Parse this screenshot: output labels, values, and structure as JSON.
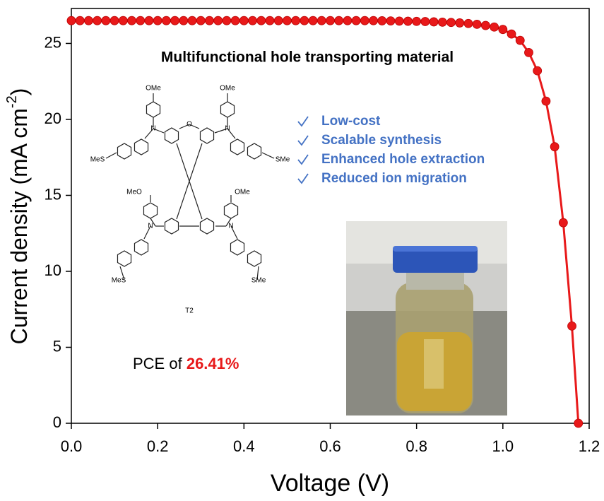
{
  "chart_data": {
    "type": "line",
    "xlabel": "Voltage (V)",
    "ylabel": {
      "text": "Current density (mA cm",
      "superscript": "-2",
      "close": ")"
    },
    "xlim": [
      0,
      1.2
    ],
    "ylim": [
      0,
      27.3
    ],
    "xticks": [
      {
        "value": 0,
        "label": "0.0"
      },
      0.2,
      0.4,
      0.6,
      0.8,
      {
        "value": 1,
        "label": "1.0"
      },
      1.2
    ],
    "yticks": [
      0,
      5,
      10,
      15,
      20,
      25
    ],
    "series": [
      {
        "color": "#e8191a",
        "x": [
          0,
          0.02,
          0.04,
          0.06,
          0.08,
          0.1,
          0.12,
          0.14,
          0.16,
          0.18,
          0.2,
          0.22,
          0.24,
          0.26,
          0.28,
          0.3,
          0.32,
          0.34,
          0.36,
          0.38,
          0.4,
          0.42,
          0.44,
          0.46,
          0.48,
          0.5,
          0.52,
          0.54,
          0.56,
          0.58,
          0.6,
          0.62,
          0.64,
          0.66,
          0.68,
          0.7,
          0.72,
          0.74,
          0.76,
          0.78,
          0.8,
          0.82,
          0.84,
          0.86,
          0.88,
          0.9,
          0.92,
          0.94,
          0.96,
          0.98,
          1.0,
          1.02,
          1.04,
          1.06,
          1.08,
          1.1,
          1.12,
          1.14,
          1.16,
          1.175
        ],
        "values": [
          26.5,
          26.5,
          26.5,
          26.5,
          26.5,
          26.5,
          26.5,
          26.5,
          26.5,
          26.5,
          26.5,
          26.5,
          26.5,
          26.5,
          26.5,
          26.5,
          26.5,
          26.5,
          26.5,
          26.5,
          26.5,
          26.5,
          26.5,
          26.5,
          26.5,
          26.5,
          26.5,
          26.5,
          26.5,
          26.5,
          26.5,
          26.5,
          26.5,
          26.5,
          26.5,
          26.5,
          26.49,
          26.48,
          26.47,
          26.46,
          26.45,
          26.44,
          26.42,
          26.4,
          26.38,
          26.35,
          26.31,
          26.26,
          26.18,
          26.08,
          25.92,
          25.62,
          25.2,
          24.4,
          23.2,
          21.2,
          18.2,
          13.2,
          6.4,
          0
        ]
      }
    ],
    "annotations": {
      "heading": "Multifunctional hole transporting material",
      "features": [
        "Low-cost",
        "Scalable synthesis",
        "Enhanced hole extraction",
        "Reduced ion migration"
      ],
      "pce_prefix": "PCE of",
      "pce_value": "26.41%",
      "molecule_name": "T2",
      "molecule_labels": [
        "OMe",
        "OMe",
        "MeS",
        "SMe",
        "MeO",
        "OMe",
        "MeS",
        "SMe",
        "N",
        "N",
        "N",
        "N",
        "O"
      ]
    }
  }
}
